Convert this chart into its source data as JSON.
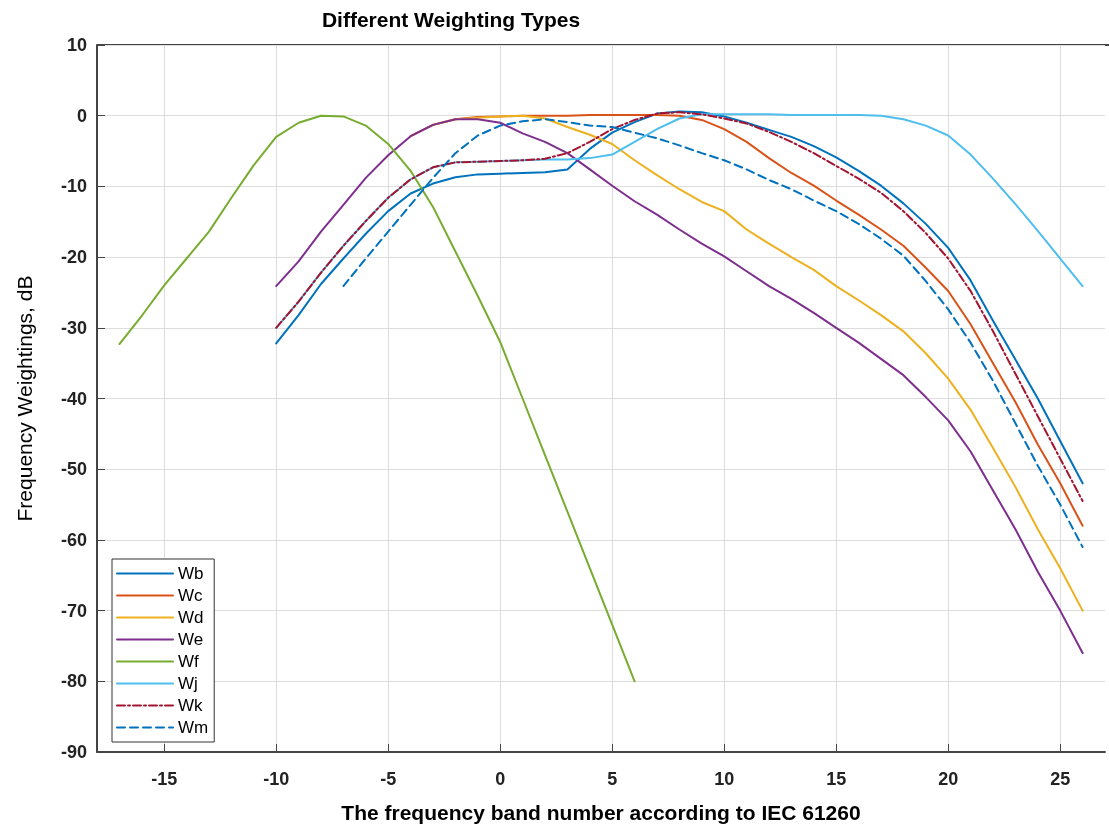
{
  "chart_data": {
    "type": "line",
    "title": "Different Weighting Types",
    "xlabel": "The frequency band number according to IEC 61260",
    "ylabel": "Frequency Weightings, dB",
    "xlim": [
      -18,
      27
    ],
    "xticks": [
      -15,
      -10,
      -5,
      0,
      5,
      10,
      15,
      20,
      25
    ],
    "ylim": [
      -90,
      10
    ],
    "yticks": [
      -90,
      -80,
      -70,
      -60,
      -50,
      -40,
      -30,
      -20,
      -10,
      0,
      10
    ],
    "grid": true,
    "legend": "bottom left",
    "marker": "none",
    "series": [
      {
        "name": "Wb",
        "color": "#0072bd",
        "line_style": "solid",
        "x": [
          -10,
          -9,
          -8,
          -7,
          -6,
          -5,
          -4,
          -3,
          -2,
          -1,
          0,
          1,
          2,
          3,
          4,
          5,
          6,
          7,
          8,
          9,
          10,
          11,
          12,
          13,
          14,
          15,
          16,
          17,
          18,
          19,
          20,
          21,
          22,
          23,
          24,
          25,
          26
        ],
        "values": [
          -32.2,
          -28.2,
          -23.8,
          -20.2,
          -16.7,
          -13.5,
          -11,
          -9.6,
          -8.7,
          -8.3,
          -8.2,
          -8.1,
          -8,
          -7.6,
          -4.7,
          -2.4,
          -0.9,
          0.3,
          0.6,
          0.5,
          -0.1,
          -1,
          -2,
          -3,
          -4.3,
          -5.9,
          -7.8,
          -9.9,
          -12.4,
          -15.3,
          -18.7,
          -23.3,
          -29,
          -34.5,
          -40,
          -46,
          -52
        ]
      },
      {
        "name": "Wc",
        "color": "#d95319",
        "line_style": "solid",
        "x": [
          -4,
          -3,
          -2,
          -1,
          0,
          1,
          2,
          3,
          4,
          5,
          6,
          7,
          8,
          9,
          10,
          11,
          12,
          13,
          14,
          15,
          16,
          17,
          18,
          19,
          20,
          21,
          22,
          23,
          24,
          25,
          26
        ],
        "values": [
          -2.9,
          -1.3,
          -0.5,
          -0.2,
          -0.1,
          0,
          0,
          0,
          0.1,
          0.1,
          0.1,
          0.1,
          0,
          -0.6,
          -1.9,
          -3.7,
          -6,
          -8.1,
          -9.9,
          -12,
          -14,
          -16.1,
          -18.4,
          -21.5,
          -24.8,
          -29.5,
          -35,
          -40.5,
          -46.5,
          -52,
          -58
        ]
      },
      {
        "name": "Wd",
        "color": "#edb120",
        "line_style": "solid",
        "x": [
          -3,
          -2,
          -1,
          0,
          1,
          2,
          3,
          4,
          5,
          6,
          7,
          8,
          9,
          10,
          11,
          12,
          13,
          14,
          15,
          16,
          17,
          18,
          19,
          20,
          21,
          22,
          23,
          24,
          25,
          26
        ],
        "values": [
          -1.3,
          -0.5,
          -0.3,
          -0.1,
          0,
          -0.4,
          -1.6,
          -2.7,
          -4,
          -6.3,
          -8.4,
          -10.4,
          -12.2,
          -13.5,
          -16.1,
          -18.1,
          -20,
          -21.8,
          -24.1,
          -26.1,
          -28.2,
          -30.5,
          -33.6,
          -37.2,
          -41.6,
          -47,
          -52.5,
          -58.5,
          -64,
          -70
        ]
      },
      {
        "name": "We",
        "color": "#7e2f8e",
        "line_style": "solid",
        "x": [
          -10,
          -9,
          -8,
          -7,
          -6,
          -5,
          -4,
          -3,
          -2,
          -1,
          0,
          1,
          2,
          3,
          4,
          5,
          6,
          7,
          8,
          9,
          10,
          11,
          12,
          13,
          14,
          15,
          16,
          17,
          18,
          19,
          20,
          21,
          22,
          23,
          24,
          25,
          26
        ],
        "values": [
          -24.1,
          -20.6,
          -16.4,
          -12.6,
          -8.8,
          -5.6,
          -2.9,
          -1.3,
          -0.5,
          -0.5,
          -1,
          -2.5,
          -3.7,
          -5.3,
          -7.6,
          -9.9,
          -12.1,
          -14,
          -16.1,
          -18.1,
          -19.9,
          -22,
          -24.1,
          -25.9,
          -27.9,
          -30,
          -32.1,
          -34.4,
          -36.7,
          -39.8,
          -43.1,
          -47.5,
          -53,
          -58.5,
          -64.5,
          -70,
          -76
        ]
      },
      {
        "name": "Wf",
        "color": "#77ac30",
        "line_style": "solid",
        "x": [
          -17,
          -16,
          -15,
          -14,
          -13,
          -12,
          -11,
          -10,
          -9,
          -8,
          -7,
          -6,
          -5,
          -4,
          -3,
          -2,
          -1,
          0,
          1,
          2,
          3,
          4,
          5,
          6
        ],
        "values": [
          -32.3,
          -28.3,
          -24,
          -20.2,
          -16.4,
          -11.6,
          -7,
          -3,
          -1,
          0,
          -0.1,
          -1.4,
          -4,
          -7.8,
          -12.9,
          -19.2,
          -25.5,
          -32,
          -40,
          -48,
          -56,
          -64,
          -72,
          -80
        ]
      },
      {
        "name": "Wj",
        "color": "#4dbeee",
        "line_style": "solid",
        "x": [
          -10,
          -9,
          -8,
          -7,
          -6,
          -5,
          -4,
          -3,
          -2,
          -1,
          0,
          1,
          2,
          3,
          4,
          5,
          6,
          7,
          8,
          9,
          10,
          11,
          12,
          13,
          14,
          15,
          16,
          17,
          18,
          19,
          20,
          21,
          22,
          23,
          24,
          25,
          26
        ],
        "values": [
          -30,
          -26.3,
          -22.2,
          -18.4,
          -14.9,
          -11.6,
          -9,
          -7.3,
          -6.6,
          -6.5,
          -6.4,
          -6.3,
          -6.2,
          -6.2,
          -6,
          -5.5,
          -3.7,
          -1.9,
          -0.4,
          0.2,
          0.2,
          0.2,
          0.2,
          0.1,
          0.1,
          0.1,
          0.1,
          0,
          -0.5,
          -1.4,
          -2.8,
          -5.5,
          -8.9,
          -12.5,
          -16.3,
          -20.2,
          -24.1
        ]
      },
      {
        "name": "Wk",
        "color": "#a2142f",
        "line_style": "dashdot",
        "x": [
          -10,
          -9,
          -8,
          -7,
          -6,
          -5,
          -4,
          -3,
          -2,
          -1,
          0,
          1,
          2,
          3,
          4,
          5,
          6,
          7,
          8,
          9,
          10,
          11,
          12,
          13,
          14,
          15,
          16,
          17,
          18,
          19,
          20,
          21,
          22,
          23,
          24,
          25,
          26
        ],
        "values": [
          -30,
          -26.3,
          -22.2,
          -18.4,
          -14.9,
          -11.6,
          -9,
          -7.3,
          -6.6,
          -6.5,
          -6.4,
          -6.3,
          -6.1,
          -5.3,
          -3.7,
          -1.9,
          -0.6,
          0.3,
          0.5,
          0.2,
          -0.4,
          -1.1,
          -2.3,
          -3.7,
          -5.3,
          -7.1,
          -8.9,
          -10.9,
          -13.5,
          -16.6,
          -20.2,
          -24.8,
          -30.5,
          -36.5,
          -42.5,
          -48.5,
          -54.5
        ]
      },
      {
        "name": "Wm",
        "color": "#0072bd",
        "line_style": "dashed",
        "x": [
          -7,
          -6,
          -5,
          -4,
          -3,
          -2,
          -1,
          0,
          1,
          2,
          3,
          4,
          5,
          6,
          7,
          8,
          9,
          10,
          11,
          12,
          13,
          14,
          15,
          16,
          17,
          18,
          19,
          20,
          21,
          22,
          23,
          24,
          25,
          26
        ],
        "values": [
          -24.1,
          -20.2,
          -16.4,
          -12.6,
          -8.8,
          -5.3,
          -2.8,
          -1.4,
          -0.8,
          -0.5,
          -0.9,
          -1.4,
          -1.6,
          -2.4,
          -3.2,
          -4.2,
          -5.3,
          -6.3,
          -7.6,
          -9.1,
          -10.4,
          -12,
          -13.5,
          -15.3,
          -17.4,
          -19.8,
          -23.4,
          -27.4,
          -32.1,
          -37.5,
          -43.5,
          -49.5,
          -55,
          -61
        ]
      }
    ]
  }
}
